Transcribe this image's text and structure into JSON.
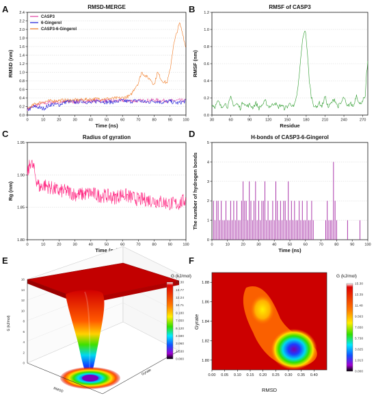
{
  "panel_letters": [
    "A",
    "B",
    "C",
    "D",
    "E",
    "F"
  ],
  "chart_data": [
    {
      "type": "line",
      "id": "A",
      "title": "RMSD-MERGE",
      "xlabel": "Time (ns)",
      "ylabel": "RMSD (nm)",
      "xlim": [
        0,
        100
      ],
      "ylim": [
        0.0,
        2.4
      ],
      "xticks": [
        "0",
        "10",
        "20",
        "30",
        "40",
        "50",
        "60",
        "70",
        "80",
        "90",
        "100"
      ],
      "yticks": [
        "0.0",
        "0.2",
        "0.4",
        "0.6",
        "0.8",
        "1.0",
        "1.2",
        "1.4",
        "1.6",
        "1.8",
        "2.0",
        "2.2",
        "2.4"
      ],
      "legend_position": "top-left",
      "series": [
        {
          "name": "CASP3",
          "color": "#e040a0",
          "x": [
            0,
            5,
            10,
            15,
            20,
            25,
            30,
            35,
            40,
            45,
            50,
            55,
            60,
            65,
            70,
            75,
            80,
            85,
            90,
            95,
            100
          ],
          "values": [
            0.14,
            0.22,
            0.27,
            0.3,
            0.3,
            0.31,
            0.31,
            0.32,
            0.33,
            0.34,
            0.33,
            0.33,
            0.34,
            0.33,
            0.33,
            0.34,
            0.35,
            0.34,
            0.33,
            0.34,
            0.34
          ]
        },
        {
          "name": "6-Gingerol",
          "color": "#1515d6",
          "x": [
            0,
            5,
            10,
            15,
            20,
            25,
            30,
            35,
            40,
            45,
            50,
            55,
            60,
            65,
            70,
            75,
            80,
            85,
            90,
            95,
            100
          ],
          "values": [
            0.12,
            0.2,
            0.15,
            0.25,
            0.24,
            0.32,
            0.3,
            0.33,
            0.28,
            0.34,
            0.3,
            0.31,
            0.33,
            0.32,
            0.34,
            0.3,
            0.33,
            0.3,
            0.32,
            0.28,
            0.33
          ]
        },
        {
          "name": "CASP3-6-Gingerol",
          "color": "#f07820",
          "x": [
            0,
            5,
            10,
            15,
            20,
            25,
            30,
            35,
            40,
            45,
            50,
            55,
            60,
            65,
            68,
            70,
            72,
            75,
            78,
            80,
            82,
            85,
            88,
            90,
            92,
            94,
            96,
            98,
            100
          ],
          "values": [
            0.15,
            0.26,
            0.31,
            0.33,
            0.34,
            0.35,
            0.35,
            0.36,
            0.37,
            0.38,
            0.38,
            0.39,
            0.4,
            0.45,
            0.65,
            0.75,
            1.0,
            0.9,
            0.82,
            0.7,
            1.0,
            0.8,
            0.75,
            1.05,
            1.6,
            1.9,
            2.15,
            1.9,
            1.55
          ]
        }
      ]
    },
    {
      "type": "line",
      "id": "B",
      "title": "RMSF of CASP3",
      "xlabel": "Residue",
      "ylabel": "RMSF (nm)",
      "xlim": [
        30,
        278
      ],
      "ylim": [
        0.0,
        1.2
      ],
      "xticks": [
        "30",
        "60",
        "90",
        "120",
        "150",
        "180",
        "210",
        "240",
        "270"
      ],
      "yticks": [
        "0.0",
        "0.2",
        "0.4",
        "0.6",
        "0.8",
        "1.0",
        "1.2"
      ],
      "series": [
        {
          "color": "#2a9a2a",
          "x": [
            30,
            35,
            40,
            45,
            50,
            55,
            60,
            65,
            70,
            75,
            80,
            85,
            90,
            95,
            100,
            105,
            110,
            115,
            120,
            125,
            130,
            135,
            140,
            145,
            150,
            155,
            160,
            163,
            167,
            170,
            173,
            176,
            178,
            180,
            182,
            185,
            188,
            192,
            196,
            200,
            205,
            210,
            215,
            220,
            225,
            230,
            235,
            240,
            245,
            250,
            255,
            260,
            265,
            270,
            274,
            276,
            278
          ],
          "values": [
            0.12,
            0.1,
            0.16,
            0.09,
            0.14,
            0.1,
            0.2,
            0.11,
            0.13,
            0.08,
            0.16,
            0.1,
            0.12,
            0.09,
            0.14,
            0.08,
            0.12,
            0.16,
            0.1,
            0.11,
            0.15,
            0.09,
            0.12,
            0.08,
            0.1,
            0.14,
            0.09,
            0.15,
            0.32,
            0.55,
            0.8,
            0.95,
            1.0,
            0.9,
            0.7,
            0.4,
            0.22,
            0.12,
            0.08,
            0.15,
            0.1,
            0.22,
            0.09,
            0.14,
            0.19,
            0.1,
            0.13,
            0.21,
            0.09,
            0.14,
            0.1,
            0.24,
            0.12,
            0.18,
            0.2,
            0.48,
            0.62
          ]
        }
      ]
    },
    {
      "type": "line",
      "id": "C",
      "title": "Radius of gyration",
      "xlabel": "Time (ns)",
      "ylabel": "Rg (nm)",
      "xlim": [
        0,
        100
      ],
      "ylim": [
        1.8,
        1.95
      ],
      "xticks": [
        "0",
        "10",
        "20",
        "30",
        "40",
        "50",
        "60",
        "70",
        "80",
        "90",
        "100"
      ],
      "yticks": [
        "1.80",
        "1.85",
        "1.90",
        "1.95"
      ],
      "series": [
        {
          "color": "#ff1a7a",
          "x": [
            0,
            2,
            4,
            6,
            8,
            10,
            15,
            20,
            25,
            30,
            35,
            40,
            45,
            50,
            55,
            60,
            65,
            70,
            75,
            80,
            85,
            90,
            95,
            100
          ],
          "values": [
            1.9,
            1.92,
            1.91,
            1.89,
            1.88,
            1.885,
            1.88,
            1.875,
            1.875,
            1.87,
            1.87,
            1.872,
            1.868,
            1.868,
            1.865,
            1.87,
            1.866,
            1.862,
            1.862,
            1.86,
            1.858,
            1.856,
            1.855,
            1.862
          ]
        }
      ]
    },
    {
      "type": "bar",
      "id": "D",
      "title": "H-bonds of CASP3-6-Gingerol",
      "xlabel": "Time (ns)",
      "ylabel": "The number of hydrogen bonds",
      "xlim": [
        0,
        100
      ],
      "ylim": [
        0,
        5
      ],
      "xticks": [
        "0",
        "10",
        "20",
        "30",
        "40",
        "50",
        "60",
        "70",
        "80",
        "90",
        "100"
      ],
      "yticks": [
        "0",
        "1",
        "2",
        "3",
        "4",
        "5"
      ],
      "series": [
        {
          "color": "#a020a0",
          "x": [
            1,
            2,
            3,
            4,
            5,
            6,
            7,
            8,
            9,
            10,
            11,
            12,
            13,
            14,
            15,
            16,
            17,
            18,
            19,
            20,
            21,
            22,
            23,
            24,
            25,
            26,
            27,
            28,
            29,
            30,
            31,
            32,
            33,
            34,
            35,
            36,
            37,
            38,
            39,
            40,
            41,
            42,
            43,
            44,
            45,
            46,
            47,
            48,
            49,
            50,
            51,
            52,
            53,
            54,
            55,
            56,
            57,
            58,
            59,
            60,
            61,
            62,
            63,
            64,
            65,
            73,
            74,
            75,
            76,
            77,
            78,
            79,
            80,
            87,
            95
          ],
          "values": [
            2,
            1,
            2,
            2,
            1,
            2,
            1,
            1,
            2,
            1,
            1,
            2,
            1,
            2,
            1,
            2,
            1,
            1,
            2,
            3,
            2,
            2,
            1,
            3,
            2,
            1,
            2,
            3,
            1,
            2,
            1,
            2,
            2,
            3,
            1,
            2,
            1,
            1,
            2,
            1,
            3,
            2,
            1,
            2,
            1,
            2,
            2,
            1,
            3,
            1,
            2,
            1,
            2,
            1,
            1,
            2,
            1,
            2,
            1,
            1,
            2,
            1,
            1,
            2,
            1,
            1,
            2,
            1,
            1,
            1,
            4,
            2,
            1,
            1,
            1
          ]
        }
      ]
    },
    {
      "type": "heatmap",
      "id": "E",
      "subtype": "3d-surface",
      "zlabel": "G (kJ/mol)",
      "xlabel": "RMSD",
      "ylabel": "Gyrate",
      "zticks": [
        "0",
        "2",
        "4",
        "6",
        "8",
        "10",
        "12",
        "14",
        "16"
      ],
      "colorbar_label": "G (kJ/mol)",
      "colorbar_ticks": [
        "15.30",
        "13.77",
        "12.24",
        "10.71",
        "9.180",
        "7.650",
        "6.120",
        "4.590",
        "3.060",
        "1.530",
        "0.000"
      ]
    },
    {
      "type": "heatmap",
      "id": "F",
      "xlabel": "RMSD",
      "ylabel": "Gyrate",
      "xlim": [
        0.0,
        0.45
      ],
      "ylim": [
        1.79,
        1.89
      ],
      "xticks": [
        "0.00",
        "0.05",
        "0.10",
        "0.15",
        "0.20",
        "0.25",
        "0.30",
        "0.35",
        "0.40"
      ],
      "yticks": [
        "1.80",
        "1.82",
        "1.84",
        "1.86",
        "1.88"
      ],
      "minima": [
        {
          "x": 0.33,
          "y": 1.815
        },
        {
          "x": 0.22,
          "y": 1.855
        }
      ],
      "colorbar_label": "G (kJ/mol)",
      "colorbar_ticks": [
        "15.30",
        "13.39",
        "11.48",
        "9.563",
        "7.650",
        "5.738",
        "3.825",
        "1.913",
        "0.000"
      ]
    }
  ]
}
